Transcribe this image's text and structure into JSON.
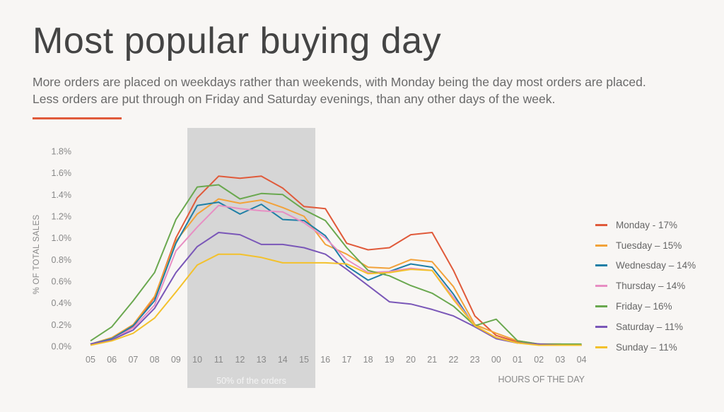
{
  "title": "Most popular buying day",
  "subtitle": "More orders are placed on weekdays rather than weekends, with Monday being the day most orders are placed. Less orders are put through on Friday and Saturday evenings, than any other days of the week.",
  "colors": {
    "accent": "#e05a3a",
    "highlight": "#d6d6d6",
    "axis_text": "#888888",
    "grid": "#e6e4e2"
  },
  "chart_data": {
    "type": "line",
    "xlabel": "HOURS OF THE DAY",
    "ylabel": "% OF TOTAL SALES",
    "ylim": [
      0,
      1.8
    ],
    "yticks": [
      0,
      0.2,
      0.4,
      0.6,
      0.8,
      1.0,
      1.2,
      1.4,
      1.6,
      1.8
    ],
    "ytick_labels": [
      "0.0%",
      "0.2%",
      "0.4%",
      "0.6%",
      "0.8%",
      "1.0%",
      "1.2%",
      "1.4%",
      "1.6%",
      "1.8%"
    ],
    "categories": [
      "05",
      "06",
      "07",
      "08",
      "09",
      "10",
      "11",
      "12",
      "13",
      "14",
      "15",
      "16",
      "17",
      "18",
      "19",
      "20",
      "21",
      "22",
      "23",
      "00",
      "01",
      "02",
      "03",
      "04"
    ],
    "highlight": {
      "from": "10",
      "to": "15",
      "label": "50% of the orders"
    },
    "legend_position": "right",
    "series": [
      {
        "name": "Monday - 17%",
        "color": "#e05a3a",
        "values": [
          0.02,
          0.07,
          0.18,
          0.45,
          1.0,
          1.37,
          1.57,
          1.55,
          1.57,
          1.46,
          1.29,
          1.27,
          0.95,
          0.89,
          0.91,
          1.03,
          1.05,
          0.7,
          0.28,
          0.1,
          0.04,
          0.02,
          0.02,
          0.01
        ]
      },
      {
        "name": "Tuesday – 15%",
        "color": "#f2a23a",
        "values": [
          0.02,
          0.08,
          0.2,
          0.46,
          0.97,
          1.22,
          1.36,
          1.32,
          1.35,
          1.28,
          1.2,
          0.94,
          0.85,
          0.73,
          0.72,
          0.8,
          0.78,
          0.55,
          0.2,
          0.12,
          0.05,
          0.02,
          0.01,
          0.01
        ]
      },
      {
        "name": "Wednesday – 14%",
        "color": "#1e7fa6",
        "values": [
          0.02,
          0.07,
          0.19,
          0.42,
          0.95,
          1.3,
          1.33,
          1.22,
          1.31,
          1.17,
          1.16,
          1.02,
          0.74,
          0.61,
          0.69,
          0.76,
          0.73,
          0.48,
          0.18,
          0.08,
          0.03,
          0.02,
          0.01,
          0.01
        ]
      },
      {
        "name": "Thursday – 14%",
        "color": "#e78ec3",
        "values": [
          0.02,
          0.06,
          0.17,
          0.38,
          0.88,
          1.1,
          1.3,
          1.27,
          1.25,
          1.24,
          1.14,
          1.0,
          0.8,
          0.68,
          0.69,
          0.72,
          0.7,
          0.45,
          0.19,
          0.08,
          0.03,
          0.02,
          0.01,
          0.01
        ]
      },
      {
        "name": "Friday – 16%",
        "color": "#6aa84f",
        "values": [
          0.05,
          0.18,
          0.42,
          0.68,
          1.17,
          1.47,
          1.49,
          1.36,
          1.41,
          1.4,
          1.26,
          1.16,
          0.91,
          0.7,
          0.65,
          0.56,
          0.49,
          0.37,
          0.19,
          0.25,
          0.05,
          0.02,
          0.02,
          0.02
        ]
      },
      {
        "name": "Saturday – 11%",
        "color": "#7a57b8",
        "values": [
          0.02,
          0.06,
          0.15,
          0.35,
          0.68,
          0.92,
          1.05,
          1.03,
          0.94,
          0.94,
          0.91,
          0.85,
          0.71,
          0.56,
          0.41,
          0.39,
          0.34,
          0.28,
          0.18,
          0.07,
          0.03,
          0.02,
          0.01,
          0.01
        ]
      },
      {
        "name": "Sunday – 11%",
        "color": "#f3c12c",
        "values": [
          0.01,
          0.05,
          0.12,
          0.26,
          0.5,
          0.75,
          0.85,
          0.85,
          0.82,
          0.77,
          0.77,
          0.77,
          0.76,
          0.67,
          0.68,
          0.71,
          0.7,
          0.43,
          0.19,
          0.08,
          0.03,
          0.01,
          0.01,
          0.01
        ]
      }
    ]
  }
}
